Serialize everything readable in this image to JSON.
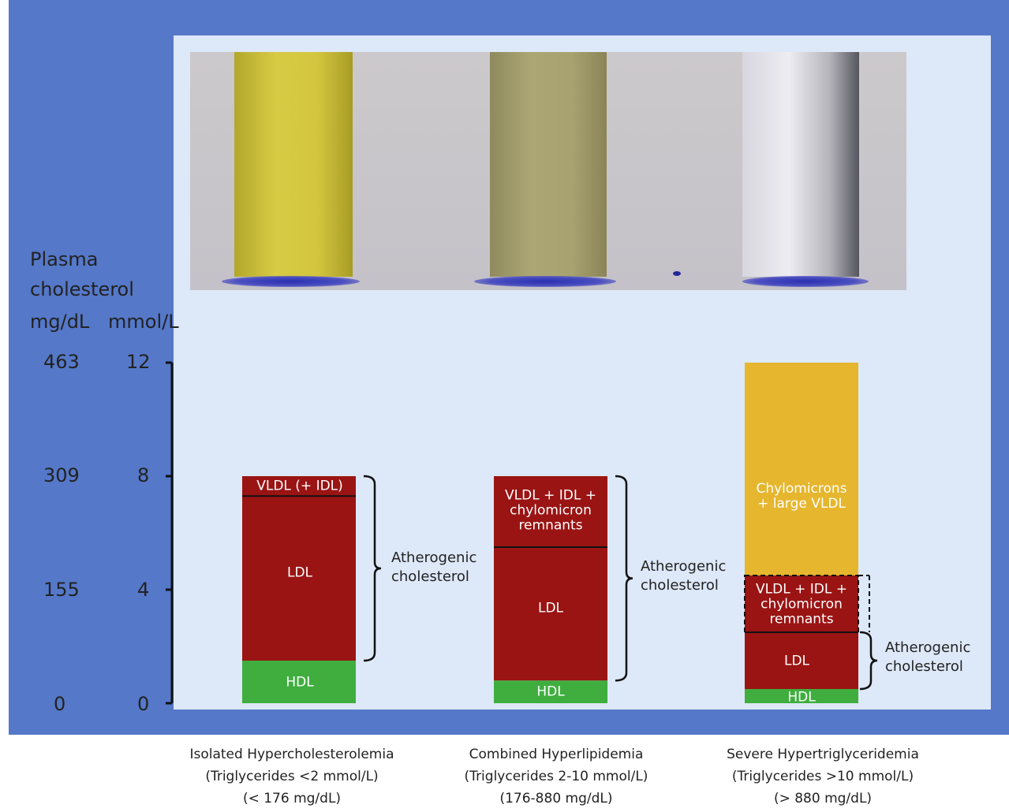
{
  "axis_titles": {
    "main": [
      "Plasma",
      "cholesterol"
    ],
    "unit_left": "mg/dL",
    "unit_right": "mmol/L"
  },
  "tick_labels_mgdl": [
    "463",
    "309",
    "155",
    "0"
  ],
  "tick_labels_mmol": [
    "12",
    "8",
    "4",
    "0"
  ],
  "colors": {
    "frame": "#5578c9",
    "panel": "#dde8f8",
    "hdl": "#3fae3f",
    "ldl": "#9a1414",
    "chylomicrons": "#e6b62e",
    "tube_1": "#d1c33c",
    "tube_2": "#a9a16f",
    "tube_3": "#e4e3e9"
  },
  "categories": [
    {
      "name": "Isolated Hypercholesterolemia",
      "tg_mmol": "(Triglycerides <2 mmol/L)",
      "tg_mgdl": "(< 176 mg/dL)"
    },
    {
      "name": "Combined Hyperlipidemia",
      "tg_mmol": "(Triglycerides 2-10 mmol/L)",
      "tg_mgdl": "(176-880 mg/dL)"
    },
    {
      "name": "Severe Hypertriglyceridemia",
      "tg_mmol": "(Triglycerides >10 mmol/L)",
      "tg_mgdl": "(> 880 mg/dL)"
    }
  ],
  "labels": {
    "hdl": "HDL",
    "ldl": "LDL",
    "vldl_idl_1": "VLDL (+ IDL)",
    "vldl_idl_2": [
      "VLDL + IDL +",
      "chylomicron",
      "remnants"
    ],
    "vldl_idl_3": [
      "VLDL + IDL +",
      "chylomicron",
      "remnants"
    ],
    "chylo": [
      "Chylomicrons",
      "+ large VLDL"
    ],
    "athero_1": [
      "Atherogenic",
      "cholesterol"
    ],
    "athero_2": [
      "Atherogenic",
      "cholesterol"
    ],
    "athero_3": [
      "Atherogenic",
      "cholesterol"
    ]
  },
  "chart_data": {
    "type": "bar",
    "stacked": true,
    "ylabel": "Plasma cholesterol",
    "y_units": [
      "mg/dL",
      "mmol/L"
    ],
    "ylim_mmol": [
      0,
      12
    ],
    "yticks_mmol": [
      0,
      4,
      8,
      12
    ],
    "yticks_mgdl": [
      0,
      155,
      309,
      463
    ],
    "categories": [
      "Isolated Hypercholesterolemia",
      "Combined Hyperlipidemia",
      "Severe Hypertriglyceridemia"
    ],
    "series": [
      {
        "name": "HDL",
        "values": [
          1.5,
          0.8,
          0.5
        ]
      },
      {
        "name": "LDL",
        "values": [
          5.8,
          4.7,
          2.0
        ]
      },
      {
        "name": "VLDL (+ IDL) / VLDL + IDL + chylomicron remnants",
        "values": [
          0.7,
          2.5,
          2.0
        ]
      },
      {
        "name": "Chylomicrons + large VLDL",
        "values": [
          0,
          0,
          7.5
        ]
      }
    ]
  }
}
